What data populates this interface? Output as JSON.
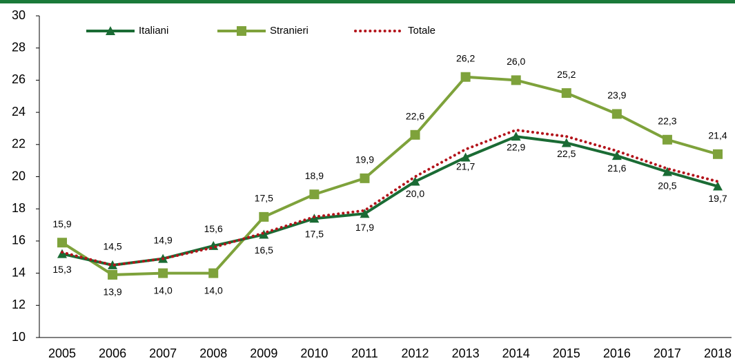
{
  "chart_data": {
    "type": "line",
    "categories": [
      "2005",
      "2006",
      "2007",
      "2008",
      "2009",
      "2010",
      "2011",
      "2012",
      "2013",
      "2014",
      "2015",
      "2016",
      "2017",
      "2018"
    ],
    "ylim": [
      10,
      30
    ],
    "yticks": [
      10,
      12,
      14,
      16,
      18,
      20,
      22,
      24,
      26,
      28,
      30
    ],
    "series": [
      {
        "name": "Italiani",
        "color": "#1a6b34",
        "marker": "triangle",
        "values": [
          15.2,
          14.5,
          14.9,
          15.7,
          16.4,
          17.4,
          17.7,
          19.7,
          21.2,
          22.5,
          22.1,
          21.3,
          20.3,
          19.4
        ]
      },
      {
        "name": "Stranieri",
        "color": "#7ea23b",
        "marker": "square",
        "values": [
          15.9,
          13.9,
          14.0,
          14.0,
          17.5,
          18.9,
          19.9,
          22.6,
          26.2,
          26.0,
          25.2,
          23.9,
          22.3,
          21.4
        ],
        "value_labels": [
          "15,9",
          "13,9",
          "14,0",
          "14,0",
          "17,5",
          "18,9",
          "19,9",
          "22,6",
          "26,2",
          "26,0",
          "25,2",
          "23,9",
          "22,3",
          "21,4"
        ]
      },
      {
        "name": "Totale",
        "color": "#b3141b",
        "dash": "dotted",
        "values": [
          15.3,
          14.5,
          14.9,
          15.6,
          16.5,
          17.5,
          17.9,
          20.0,
          21.7,
          22.9,
          22.5,
          21.6,
          20.5,
          19.7
        ],
        "value_labels": [
          "15,3",
          "14,5",
          "14,9",
          "15,6",
          "16,5",
          "17,5",
          "17,9",
          "20,0",
          "21,7",
          "22,9",
          "22,5",
          "21,6",
          "20,5",
          "19,7"
        ]
      }
    ]
  }
}
